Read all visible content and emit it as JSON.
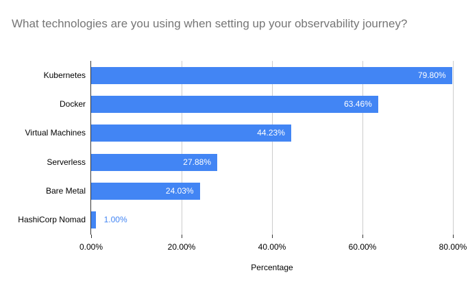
{
  "chart_data": {
    "type": "bar",
    "orientation": "horizontal",
    "title": "What technologies are you using when setting up your observability journey?",
    "categories": [
      "Kubernetes",
      "Docker",
      "Virtual Machines",
      "Serverless",
      "Bare Metal",
      "HashiCorp Nomad"
    ],
    "values": [
      79.8,
      63.46,
      44.23,
      27.88,
      24.03,
      1.0
    ],
    "value_labels": [
      "79.80%",
      "63.46%",
      "44.23%",
      "27.88%",
      "24.03%",
      "1.00%"
    ],
    "xlabel": "Percentage",
    "ylabel": "",
    "xlim": [
      0,
      80
    ],
    "ticks": [
      0,
      20,
      40,
      60,
      80
    ],
    "tick_labels": [
      "0.00%",
      "20.00%",
      "40.00%",
      "60.00%",
      "80.00%"
    ],
    "grid": true,
    "legend": "none",
    "colors": {
      "bar": "#4285f4",
      "title": "#757575",
      "gridline": "#cccccc",
      "axis_line": "#333333",
      "tick_text": "#000000",
      "category_text": "#000000",
      "value_label_inside": "#ffffff",
      "value_label_outside": "#4285f4",
      "background": "#ffffff"
    }
  }
}
